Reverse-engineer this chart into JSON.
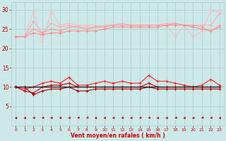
{
  "x": [
    0,
    1,
    2,
    3,
    4,
    5,
    6,
    7,
    8,
    9,
    10,
    11,
    12,
    13,
    14,
    15,
    16,
    17,
    18,
    19,
    20,
    21,
    22,
    23
  ],
  "bg_color": "#cce8e8",
  "grid_color": "#aacccc",
  "ylabel_ticks": [
    5,
    10,
    15,
    20,
    25,
    30
  ],
  "xlabel": "Vent moyen/en rafales ( km/h )",
  "xlabel_color": "#cc0000",
  "tick_color": "#cc0000",
  "upper1_color": "#ffbbbb",
  "upper2_color": "#ffaaaa",
  "upper3_color": "#ff9999",
  "upper4_color": "#ff8888",
  "lower1_color": "#ff2222",
  "lower2_color": "#cc0000",
  "lower3_color": "#aa0000",
  "black_color": "#222222",
  "arrow_color": "#cc0000",
  "series": {
    "upper1": [
      23,
      23,
      29.5,
      21.5,
      29.5,
      26,
      26.5,
      26,
      26,
      26,
      25.5,
      26,
      26,
      26,
      25.5,
      26,
      26,
      26,
      23,
      26,
      23,
      24.5,
      29.5,
      29.5
    ],
    "upper2": [
      23,
      23,
      27,
      24,
      26.5,
      25.5,
      26,
      25.5,
      25.5,
      25.5,
      26,
      26,
      26.5,
      26,
      26,
      26,
      26,
      26.5,
      26.5,
      26,
      26,
      26,
      26,
      29
    ],
    "upper3": [
      23,
      23,
      25,
      24,
      25,
      24.5,
      25.5,
      25.5,
      25,
      25.5,
      25.5,
      26,
      26,
      26,
      26,
      26,
      26,
      26,
      26.5,
      26,
      26,
      25.5,
      24.5,
      26
    ],
    "upper4": [
      23,
      23,
      24,
      23.5,
      24,
      24,
      24.5,
      24.5,
      24.5,
      24.5,
      25,
      25.5,
      25.5,
      25.5,
      25.5,
      25.5,
      25.5,
      26,
      26,
      26,
      25.5,
      25,
      24.5,
      25.5
    ],
    "lower1": [
      10,
      9.5,
      10,
      11,
      11.5,
      11,
      12.5,
      10.5,
      10.5,
      11,
      11.5,
      11,
      11.5,
      11,
      11,
      13,
      11.5,
      11.5,
      11,
      10.5,
      10,
      10.5,
      12,
      10.5
    ],
    "lower2": [
      10,
      9,
      8.5,
      10,
      10.5,
      10.5,
      11,
      10,
      10,
      10,
      10,
      10,
      10,
      10,
      10,
      11,
      10,
      10,
      10,
      10,
      10,
      10,
      10,
      10
    ],
    "lower3": [
      10,
      10,
      8,
      9,
      9.5,
      9.5,
      10,
      9,
      9,
      9.5,
      9.5,
      9.5,
      9.5,
      9.5,
      9.5,
      10,
      9.5,
      9.5,
      9.5,
      9.5,
      9.5,
      9.5,
      9.5,
      9.5
    ],
    "black_line": [
      10,
      10,
      10,
      10,
      10,
      10,
      10,
      10,
      10,
      10,
      10,
      10,
      10,
      10,
      10,
      10,
      10,
      10,
      10,
      10,
      10,
      10,
      10,
      10
    ]
  },
  "arrow_angles_deg": [
    180,
    180,
    200,
    210,
    200,
    195,
    200,
    215,
    220,
    185,
    190,
    195,
    200,
    195,
    210,
    210,
    185,
    190,
    215,
    185,
    190,
    215,
    205,
    185
  ]
}
